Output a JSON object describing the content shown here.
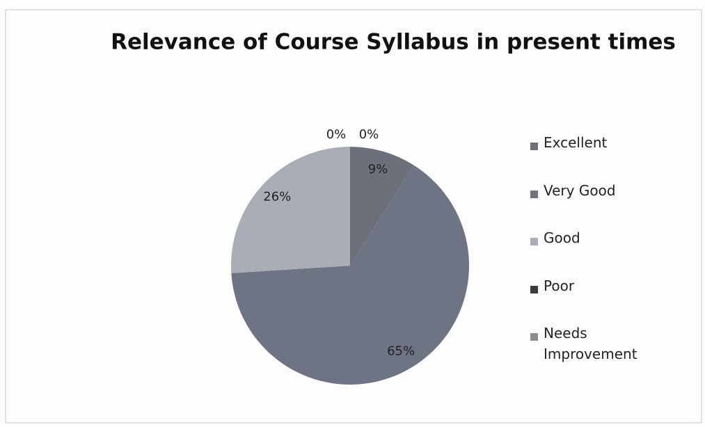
{
  "chart_data": {
    "type": "pie",
    "title": "Relevance of Course Syllabus in present times",
    "categories": [
      "Excellent",
      "Very Good",
      "Good",
      "Poor",
      "Needs Improvement"
    ],
    "values": [
      9,
      65,
      26,
      0,
      0
    ],
    "value_labels": [
      "9%",
      "65%",
      "26%",
      "0%",
      "0%"
    ],
    "colors": [
      "#6b707b",
      "#6e7483",
      "#a9adb6",
      "#3b3c40",
      "#8a8c92"
    ],
    "legend": "right"
  }
}
